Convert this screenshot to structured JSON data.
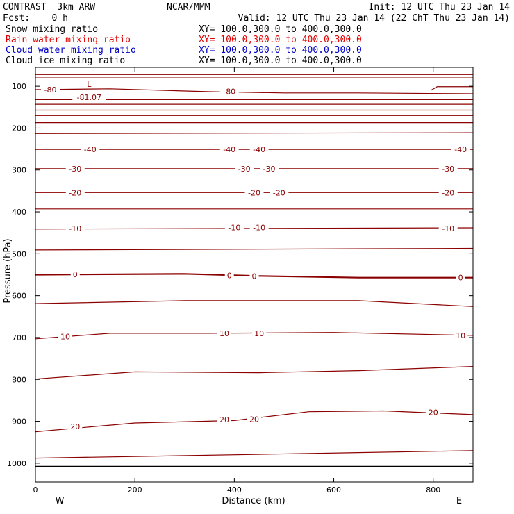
{
  "header": {
    "model": "CONTRAST  3km ARW",
    "center": "NCAR/MMM",
    "init": "Init: 12 UTC Thu 23 Jan 14",
    "fcst": "Fcst:    0 h",
    "valid": "Valid: 12 UTC Thu 23 Jan 14 (22 ChT Thu 23 Jan 14)",
    "fields": [
      {
        "name": "Snow mixing ratio",
        "xy": "XY= 100.0,300.0 to 400.0,300.0",
        "color": "#000000"
      },
      {
        "name": "Rain water mixing ratio",
        "xy": "XY= 100.0,300.0 to 400.0,300.0",
        "color": "#e00000"
      },
      {
        "name": "Cloud water mixing ratio",
        "xy": "XY= 100.0,300.0 to 400.0,300.0",
        "color": "#0000c8"
      },
      {
        "name": "Cloud ice mixing ratio",
        "xy": "XY= 100.0,300.0 to 400.0,300.0",
        "color": "#000000"
      }
    ]
  },
  "chart_data": {
    "type": "line",
    "subtype": "vertical cross-section contour plot",
    "xlabel": "Distance (km)",
    "ylabel": "Pressure (hPa)",
    "xlim": [
      0,
      880
    ],
    "ylim": [
      1045,
      55
    ],
    "x_ticks": [
      0,
      200,
      400,
      600,
      800
    ],
    "y_ticks": [
      100,
      200,
      300,
      400,
      500,
      600,
      700,
      800,
      900,
      1000
    ],
    "side_labels": {
      "left": "W",
      "right": "E"
    },
    "contour_color": "#8b0000",
    "min_label": {
      "letter": "L",
      "value": "-81.07",
      "x": 80,
      "p": 115
    },
    "ground_p": 1008,
    "contours": [
      {
        "level": "",
        "x": [
          0,
          880
        ],
        "p": [
          72,
          72
        ]
      },
      {
        "level": "",
        "x": [
          0,
          880
        ],
        "p": [
          80,
          80
        ]
      },
      {
        "level": "-80",
        "x": [
          0,
          150,
          350,
          500,
          650,
          880
        ],
        "p": [
          108,
          106,
          113,
          116,
          116,
          118
        ],
        "labels": [
          [
            30,
            108
          ],
          [
            390,
            112
          ]
        ]
      },
      {
        "level": "",
        "x": [
          0,
          880
        ],
        "p": [
          132,
          132
        ]
      },
      {
        "level": "",
        "x": [
          0,
          880
        ],
        "p": [
          143,
          143
        ]
      },
      {
        "level": "",
        "x": [
          0,
          880
        ],
        "p": [
          157,
          157
        ]
      },
      {
        "level": "",
        "x": [
          0,
          880
        ],
        "p": [
          170,
          170
        ]
      },
      {
        "level": "",
        "x": [
          0,
          880
        ],
        "p": [
          187,
          187
        ]
      },
      {
        "level": "",
        "x": [
          0,
          880
        ],
        "p": [
          213,
          211
        ]
      },
      {
        "level": "-40",
        "x": [
          0,
          880
        ],
        "p": [
          251,
          251
        ],
        "labels": [
          [
            110,
            251
          ],
          [
            390,
            251
          ],
          [
            450,
            251
          ],
          [
            855,
            251
          ]
        ]
      },
      {
        "level": "-30",
        "x": [
          0,
          880
        ],
        "p": [
          297,
          297
        ],
        "labels": [
          [
            80,
            297
          ],
          [
            420,
            297
          ],
          [
            470,
            297
          ],
          [
            830,
            297
          ]
        ]
      },
      {
        "level": "-20",
        "x": [
          0,
          880
        ],
        "p": [
          354,
          354
        ],
        "labels": [
          [
            80,
            354
          ],
          [
            440,
            354
          ],
          [
            490,
            354
          ],
          [
            830,
            354
          ]
        ]
      },
      {
        "level": "",
        "x": [
          0,
          880
        ],
        "p": [
          393,
          393
        ]
      },
      {
        "level": "-10",
        "x": [
          0,
          880
        ],
        "p": [
          441,
          438
        ],
        "labels": [
          [
            80,
            440
          ],
          [
            400,
            437
          ],
          [
            450,
            437
          ],
          [
            830,
            440
          ]
        ]
      },
      {
        "level": "",
        "x": [
          0,
          880
        ],
        "p": [
          491,
          487
        ]
      },
      {
        "level": "0",
        "x": [
          0,
          300,
          450,
          650,
          880
        ],
        "p": [
          550,
          548,
          553,
          557,
          557
        ],
        "labels": [
          [
            80,
            549
          ],
          [
            390,
            552
          ],
          [
            440,
            553
          ],
          [
            855,
            557
          ]
        ]
      },
      {
        "level": "",
        "x": [
          0,
          300,
          650,
          880
        ],
        "p": [
          619,
          612,
          612,
          626
        ]
      },
      {
        "level": "10",
        "x": [
          0,
          150,
          350,
          600,
          880
        ],
        "p": [
          703,
          690,
          690,
          688,
          695
        ],
        "labels": [
          [
            60,
            698
          ],
          [
            380,
            690
          ],
          [
            450,
            690
          ],
          [
            855,
            695
          ]
        ]
      },
      {
        "level": "",
        "x": [
          0,
          200,
          450,
          650,
          880
        ],
        "p": [
          799,
          782,
          784,
          779,
          769
        ]
      },
      {
        "level": "20",
        "x": [
          0,
          200,
          400,
          550,
          700,
          880
        ],
        "p": [
          925,
          904,
          898,
          877,
          875,
          884
        ],
        "labels": [
          [
            80,
            912
          ],
          [
            380,
            896
          ],
          [
            440,
            895
          ],
          [
            800,
            878
          ]
        ]
      },
      {
        "level": "",
        "x": [
          0,
          880
        ],
        "p": [
          988,
          970
        ]
      }
    ]
  }
}
